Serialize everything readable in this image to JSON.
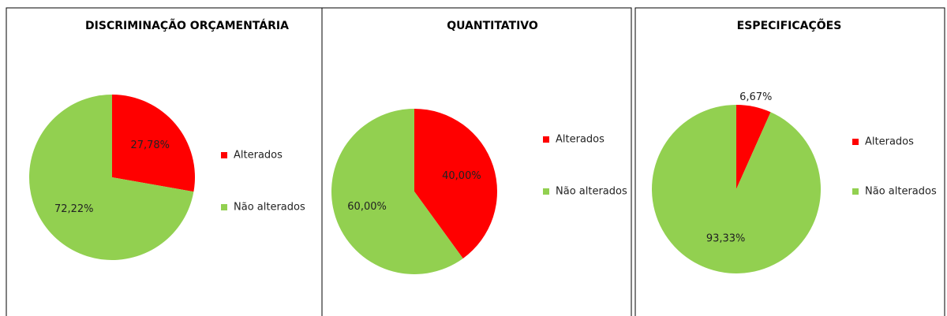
{
  "chart_data": [
    {
      "type": "pie",
      "title": "DISCRIMINAÇÃO ORÇAMENTÁRIA",
      "categories": [
        "Alterados",
        "Não alterados"
      ],
      "values": [
        27.78,
        72.22
      ],
      "value_labels": [
        "27,78%",
        "72,22%"
      ],
      "colors": [
        "#ff0000",
        "#92d050"
      ],
      "legend": "right"
    },
    {
      "type": "pie",
      "title": "QUANTITATIVO",
      "categories": [
        "Alterados",
        "Não alterados"
      ],
      "values": [
        40,
        60
      ],
      "value_labels": [
        "40,00%",
        "60,00%"
      ],
      "colors": [
        "#ff0000",
        "#92d050"
      ],
      "legend": "right"
    },
    {
      "type": "pie",
      "title": "ESPECIFICAÇÕES",
      "categories": [
        "Alterados",
        "Não alterados"
      ],
      "values": [
        6.67,
        93.33
      ],
      "value_labels": [
        "6,67%",
        "93,33%"
      ],
      "colors": [
        "#ff0000",
        "#92d050"
      ],
      "legend": "right"
    }
  ]
}
